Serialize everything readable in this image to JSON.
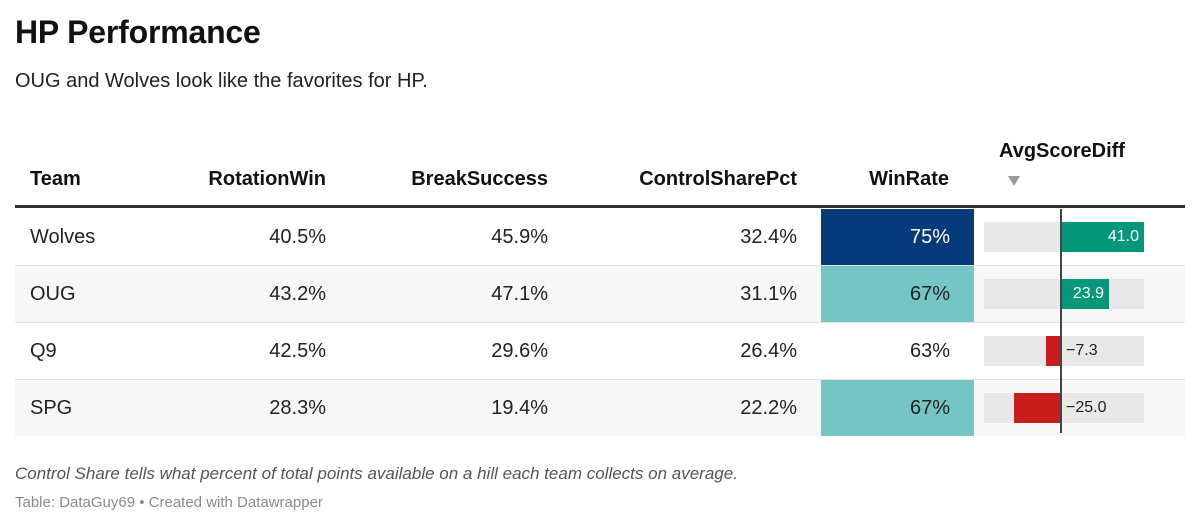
{
  "title": "HP Performance",
  "subtitle": "OUG and Wolves look like the favorites for HP.",
  "columns": {
    "team": "Team",
    "rotation": "RotationWin",
    "break": "BreakSuccess",
    "control": "ControlSharePct",
    "winrate": "WinRate",
    "scorediff": "AvgScoreDiff"
  },
  "sort_icon": "sort-descending-triangle-icon",
  "rows": [
    {
      "team": "Wolves",
      "rotation": "40.5%",
      "break": "45.9%",
      "control": "32.4%",
      "winrate": "75%",
      "winrate_value": 75,
      "scorediff": "41.0",
      "scorediff_value": 41.0
    },
    {
      "team": "OUG",
      "rotation": "43.2%",
      "break": "47.1%",
      "control": "31.1%",
      "winrate": "67%",
      "winrate_value": 67,
      "scorediff": "23.9",
      "scorediff_value": 23.9
    },
    {
      "team": "Q9",
      "rotation": "42.5%",
      "break": "29.6%",
      "control": "26.4%",
      "winrate": "63%",
      "winrate_value": 63,
      "scorediff": "−7.3",
      "scorediff_value": -7.3
    },
    {
      "team": "SPG",
      "rotation": "28.3%",
      "break": "19.4%",
      "control": "22.2%",
      "winrate": "67%",
      "winrate_value": 67,
      "scorediff": "−25.0",
      "scorediff_value": -25.0
    }
  ],
  "colors": {
    "winrate_high": "#073a7a",
    "winrate_mid": "#76c5c5",
    "positive_bar": "#05977a",
    "negative_bar": "#c71e1d",
    "bar_track": "#e8e8e8"
  },
  "scorediff_range": [
    -41,
    41
  ],
  "note": "Control Share tells what percent of total points available on a hill each team collects on average.",
  "credit": "Table: DataGuy69 • Created with Datawrapper",
  "chart_data": {
    "type": "table",
    "title": "HP Performance",
    "subtitle": "OUG and Wolves look like the favorites for HP.",
    "columns": [
      "Team",
      "RotationWin",
      "BreakSuccess",
      "ControlSharePct",
      "WinRate",
      "AvgScoreDiff"
    ],
    "rows": [
      [
        "Wolves",
        "40.5%",
        "45.9%",
        "32.4%",
        "75%",
        41.0
      ],
      [
        "OUG",
        "43.2%",
        "47.1%",
        "31.1%",
        "67%",
        23.9
      ],
      [
        "Q9",
        "42.5%",
        "29.6%",
        "26.4%",
        "63%",
        -7.3
      ],
      [
        "SPG",
        "28.3%",
        "19.4%",
        "22.2%",
        "67%",
        -25.0
      ]
    ],
    "sorted_by": "AvgScoreDiff",
    "sort_order": "descending"
  }
}
